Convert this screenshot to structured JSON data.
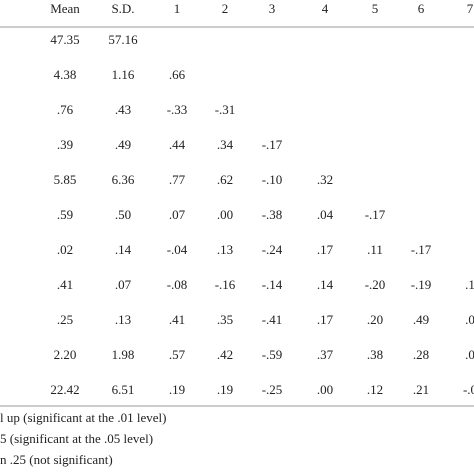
{
  "table": {
    "header": [
      "Mean",
      "S.D.",
      "1",
      "2",
      "3",
      "4",
      "5",
      "6",
      "7"
    ],
    "rows": [
      [
        "47.35",
        "57.16"
      ],
      [
        "4.38",
        "1.16",
        ".66"
      ],
      [
        ".76",
        ".43",
        "-.33",
        "-.31"
      ],
      [
        ".39",
        ".49",
        ".44",
        ".34",
        "-.17"
      ],
      [
        "5.85",
        "6.36",
        ".77",
        ".62",
        "-.10",
        ".32"
      ],
      [
        ".59",
        ".50",
        ".07",
        ".00",
        "-.38",
        ".04",
        "-.17"
      ],
      [
        ".02",
        ".14",
        "-.04",
        ".13",
        "-.24",
        ".17",
        ".11",
        "-.17"
      ],
      [
        ".41",
        ".07",
        "-.08",
        "-.16",
        "-.14",
        ".14",
        "-.20",
        "-.19",
        ".1"
      ],
      [
        ".25",
        ".13",
        ".41",
        ".35",
        "-.41",
        ".17",
        ".20",
        ".49",
        ".0"
      ],
      [
        "2.20",
        "1.98",
        ".57",
        ".42",
        "-.59",
        ".37",
        ".38",
        ".28",
        ".0"
      ],
      [
        "22.42",
        "6.51",
        ".19",
        ".19",
        "-.25",
        ".00",
        ".12",
        ".21",
        "-.0"
      ]
    ]
  },
  "notes": [
    "l up (significant at the .01 level)",
    "5 (significant at the .05 level)",
    "n .25 (not significant)"
  ]
}
